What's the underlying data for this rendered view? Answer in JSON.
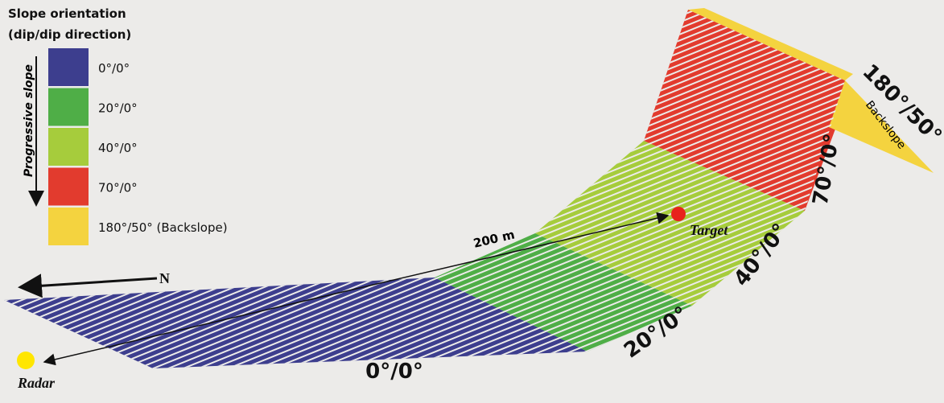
{
  "legend": {
    "title_lines": [
      "Slope orientation",
      "(dip/dip direction)"
    ],
    "axis_label": "Progressive slope",
    "items": [
      {
        "label": "0°/0°",
        "color": "#3d3e8e"
      },
      {
        "label": "20°/0°",
        "color": "#4fae47"
      },
      {
        "label": "40°/0°",
        "color": "#a6cc3c"
      },
      {
        "label": "70°/0°",
        "color": "#e23b2e"
      },
      {
        "label": "180°/50° (Backslope)",
        "color": "#f4d33f"
      }
    ]
  },
  "slopes": [
    "0°/0°",
    "20°/0°",
    "40°/0°",
    "70°/0°",
    "180°/50°"
  ],
  "backslope_label": "Backslope",
  "distance_label": "200 m",
  "north_label": "N",
  "radar_label": "Radar",
  "target_label": "Target"
}
